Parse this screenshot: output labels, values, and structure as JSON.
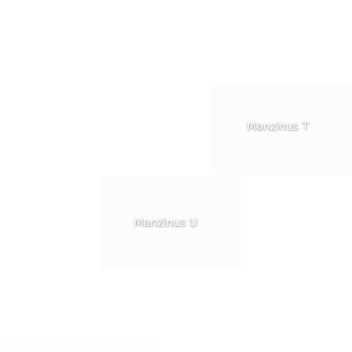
{
  "tiles": [
    {
      "label": "Manzinus T"
    },
    {
      "label": "Manzinus U"
    }
  ]
}
